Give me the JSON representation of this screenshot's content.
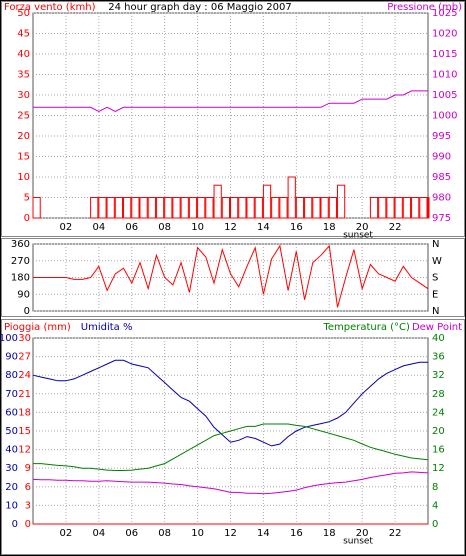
{
  "chart_data": [
    {
      "type": "combo",
      "title": "24 hour graph day : 06 Maggio 2007",
      "x": [
        0,
        0.5,
        1,
        1.5,
        2,
        2.5,
        3,
        3.5,
        4,
        4.5,
        5,
        5.5,
        6,
        6.5,
        7,
        7.5,
        8,
        8.5,
        9,
        9.5,
        10,
        10.5,
        11,
        11.5,
        12,
        12.5,
        13,
        13.5,
        14,
        14.5,
        15,
        15.5,
        16,
        16.5,
        17,
        17.5,
        18,
        18.5,
        19,
        19.5,
        20,
        20.5,
        21,
        21.5,
        22,
        22.5,
        23,
        23.5,
        24
      ],
      "xlim": [
        0,
        24
      ],
      "xticks": [
        {
          "value": 2,
          "label": "02"
        },
        {
          "value": 4,
          "label": "04"
        },
        {
          "value": 6,
          "label": "06"
        },
        {
          "value": 8,
          "label": "08"
        },
        {
          "value": 10,
          "label": "10"
        },
        {
          "value": 12,
          "label": "12"
        },
        {
          "value": 14,
          "label": "14"
        },
        {
          "value": 16,
          "label": "16"
        },
        {
          "value": 18,
          "label": "18"
        },
        {
          "value": 20,
          "label": "20"
        },
        {
          "value": 22,
          "label": "22"
        }
      ],
      "ylim": [
        0,
        50
      ],
      "yticks": [
        0,
        5,
        10,
        15,
        20,
        25,
        30,
        35,
        40,
        45,
        50
      ],
      "y2lim": [
        975,
        1025
      ],
      "y2ticks": [
        975,
        980,
        985,
        990,
        995,
        1000,
        1005,
        1010,
        1015,
        1020,
        1025
      ],
      "grid": true,
      "annotation": {
        "text": "sunset",
        "x": 19.75
      },
      "series": [
        {
          "name": "Forza vento (kmh)",
          "type": "bar",
          "color": "#ff0000",
          "axis": "y",
          "values": [
            5,
            0,
            0,
            0,
            0,
            0,
            0,
            5,
            5,
            5,
            5,
            5,
            5,
            5,
            5,
            5,
            5,
            5,
            5,
            5,
            5,
            5,
            8,
            5,
            5,
            5,
            5,
            5,
            8,
            5,
            5,
            10,
            5,
            5,
            5,
            5,
            5,
            8,
            0,
            0,
            0,
            5,
            5,
            5,
            5,
            5,
            5,
            5,
            5
          ]
        },
        {
          "name": "Pressione (mb)",
          "type": "line",
          "color": "#cc00cc",
          "axis": "y2",
          "values": [
            1002,
            1002,
            1002,
            1002,
            1002,
            1002,
            1002,
            1002,
            1001,
            1002,
            1001,
            1002,
            1002,
            1002,
            1002,
            1002,
            1002,
            1002,
            1002,
            1002,
            1002,
            1002,
            1002,
            1002,
            1002,
            1002,
            1002,
            1002,
            1002,
            1002,
            1002,
            1002,
            1002,
            1002,
            1002,
            1002,
            1003,
            1003,
            1003,
            1003,
            1004,
            1004,
            1004,
            1004,
            1005,
            1005,
            1006,
            1006,
            1006
          ]
        }
      ]
    },
    {
      "type": "combo",
      "x": [
        0,
        0.5,
        1,
        1.5,
        2,
        2.5,
        3,
        3.5,
        4,
        4.5,
        5,
        5.5,
        6,
        6.5,
        7,
        7.5,
        8,
        8.5,
        9,
        9.5,
        10,
        10.5,
        11,
        11.5,
        12,
        12.5,
        13,
        13.5,
        14,
        14.5,
        15,
        15.5,
        16,
        16.5,
        17,
        17.5,
        18,
        18.5,
        19,
        19.5,
        20,
        20.5,
        21,
        21.5,
        22,
        22.5,
        23,
        23.5,
        24
      ],
      "xlim": [
        0,
        24
      ],
      "xticks": [
        2,
        4,
        6,
        8,
        10,
        12,
        14,
        16,
        18,
        20,
        22
      ],
      "ylim": [
        0,
        360
      ],
      "yticks": [
        0,
        90,
        180,
        270,
        360
      ],
      "y2lim": [
        0,
        360
      ],
      "y2ticks": [
        {
          "value": 0,
          "label": "N"
        },
        {
          "value": 90,
          "label": "E"
        },
        {
          "value": 180,
          "label": "S"
        },
        {
          "value": 270,
          "label": "W"
        },
        {
          "value": 360,
          "label": "N"
        }
      ],
      "grid": true,
      "series": [
        {
          "type": "line",
          "color": "#ff0000",
          "axis": "y",
          "values": [
            180,
            180,
            180,
            180,
            180,
            170,
            170,
            180,
            240,
            110,
            200,
            230,
            150,
            260,
            120,
            300,
            180,
            140,
            260,
            100,
            340,
            290,
            150,
            330,
            200,
            130,
            240,
            340,
            90,
            280,
            350,
            110,
            320,
            60,
            260,
            300,
            350,
            20,
            180,
            330,
            120,
            250,
            200,
            180,
            160,
            240,
            180,
            150,
            120
          ]
        }
      ]
    },
    {
      "type": "combo",
      "x": [
        0,
        0.5,
        1,
        1.5,
        2,
        2.5,
        3,
        3.5,
        4,
        4.5,
        5,
        5.5,
        6,
        6.5,
        7,
        7.5,
        8,
        8.5,
        9,
        9.5,
        10,
        10.5,
        11,
        11.5,
        12,
        12.5,
        13,
        13.5,
        14,
        14.5,
        15,
        15.5,
        16,
        16.5,
        17,
        17.5,
        18,
        18.5,
        19,
        19.5,
        20,
        20.5,
        21,
        21.5,
        22,
        22.5,
        23,
        23.5,
        24
      ],
      "xlim": [
        0,
        24
      ],
      "xticks": [
        {
          "value": 2,
          "label": "02"
        },
        {
          "value": 4,
          "label": "04"
        },
        {
          "value": 6,
          "label": "06"
        },
        {
          "value": 8,
          "label": "08"
        },
        {
          "value": 10,
          "label": "10"
        },
        {
          "value": 12,
          "label": "12"
        },
        {
          "value": 14,
          "label": "14"
        },
        {
          "value": 16,
          "label": "16"
        },
        {
          "value": 18,
          "label": "18"
        },
        {
          "value": 20,
          "label": "20"
        },
        {
          "value": 22,
          "label": "22"
        }
      ],
      "ylim": [
        0,
        100
      ],
      "yticks": [
        0,
        10,
        20,
        30,
        40,
        50,
        60,
        70,
        80,
        90,
        100
      ],
      "y3lim": [
        0,
        30
      ],
      "y3ticks": [
        0,
        3,
        6,
        9,
        12,
        15,
        18,
        21,
        24,
        27,
        30
      ],
      "y2lim": [
        0,
        40
      ],
      "y2ticks": [
        0,
        4,
        8,
        12,
        16,
        20,
        24,
        28,
        32,
        36,
        40
      ],
      "grid": true,
      "annotation": {
        "text": "sunset",
        "x": 19.75
      },
      "series": [
        {
          "name": "Pioggia (mm)",
          "type": "line",
          "color": "#ff0000",
          "axis": "y3",
          "values": [
            0,
            0,
            0,
            0,
            0,
            0,
            0,
            0,
            0,
            0,
            0,
            0,
            0,
            0,
            0,
            0,
            0,
            0,
            0,
            0,
            0,
            0,
            0,
            0,
            0,
            0,
            0,
            0,
            0,
            0,
            0,
            0,
            0,
            0,
            0,
            0,
            0,
            0,
            0,
            0,
            0,
            0,
            0,
            0,
            0,
            0,
            0,
            0,
            0
          ]
        },
        {
          "name": "Umidita %",
          "type": "line",
          "color": "#0000aa",
          "axis": "y",
          "values": [
            80,
            79,
            78,
            77,
            77,
            78,
            80,
            82,
            84,
            86,
            88,
            88,
            86,
            85,
            84,
            80,
            76,
            72,
            68,
            66,
            62,
            58,
            52,
            48,
            44,
            45,
            47,
            46,
            44,
            42,
            43,
            47,
            50,
            52,
            53,
            54,
            55,
            57,
            60,
            65,
            70,
            74,
            78,
            81,
            83,
            85,
            86,
            87,
            87
          ]
        },
        {
          "name": "Temperatura (°C)",
          "type": "line",
          "color": "#008000",
          "axis": "y2",
          "values": [
            13,
            13,
            12.8,
            12.6,
            12.5,
            12.3,
            12,
            12,
            11.8,
            11.6,
            11.5,
            11.5,
            11.6,
            11.8,
            12,
            12.5,
            13,
            14,
            15,
            16,
            17,
            18,
            19,
            19.5,
            20,
            20.5,
            21,
            21,
            21.5,
            21.5,
            21.5,
            21.5,
            21.2,
            21,
            20.5,
            20,
            19.5,
            19,
            18.5,
            18,
            17.2,
            16.5,
            16,
            15.5,
            15,
            14.6,
            14.2,
            14,
            13.8
          ]
        },
        {
          "name": "Dew Point",
          "type": "line",
          "color": "#cc00cc",
          "axis": "y2",
          "values": [
            9.6,
            9.5,
            9.5,
            9.4,
            9.4,
            9.3,
            9.3,
            9.2,
            9.2,
            9.3,
            9.2,
            9.1,
            9.0,
            9.0,
            9.0,
            8.9,
            8.8,
            8.6,
            8.5,
            8.2,
            8.0,
            7.8,
            7.6,
            7.2,
            6.8,
            6.8,
            6.6,
            6.6,
            6.5,
            6.6,
            6.8,
            7.0,
            7.3,
            7.8,
            8.2,
            8.5,
            8.7,
            8.9,
            9.0,
            9.3,
            9.6,
            10.0,
            10.3,
            10.6,
            10.9,
            11.0,
            11.2,
            11.1,
            11.0
          ]
        }
      ]
    }
  ]
}
